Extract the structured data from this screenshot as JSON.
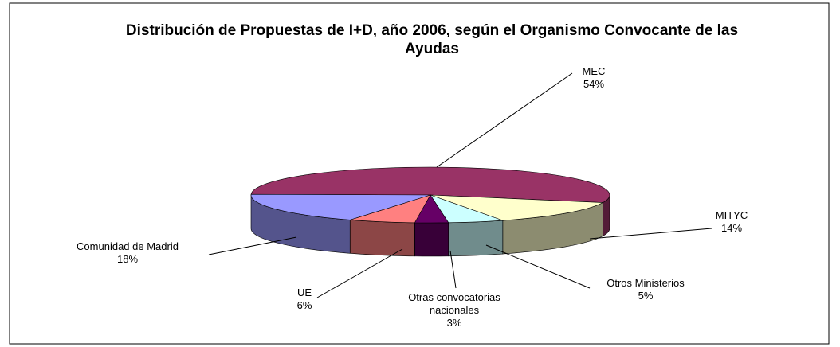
{
  "chart_data": {
    "type": "pie3d",
    "title": "Distribución de Propuestas de I+D, año 2006, según el Organismo Convocante de las Ayudas",
    "categories": [
      "MEC",
      "MITYC",
      "Otros Ministerios",
      "Otras convocatorias nacionales",
      "UE",
      "Comunidad de Madrid"
    ],
    "values": [
      54,
      14,
      5,
      3,
      6,
      18
    ],
    "value_labels": [
      "54%",
      "14%",
      "5%",
      "3%",
      "6%",
      "18%"
    ],
    "colors": [
      "#993366",
      "#FFFFCC",
      "#CCFFFF",
      "#660066",
      "#FF8080",
      "#9999FF"
    ]
  }
}
